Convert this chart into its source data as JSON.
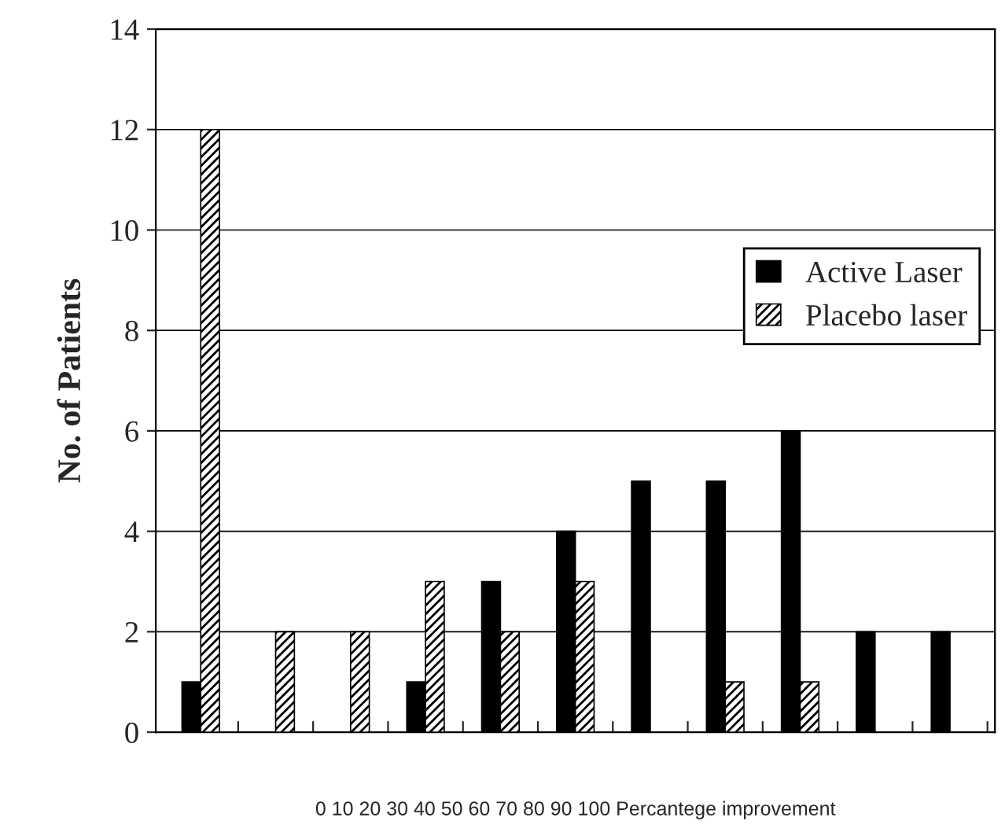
{
  "chart_data": {
    "type": "bar",
    "categories": [
      null,
      null,
      null,
      null,
      null,
      null,
      null,
      null,
      null,
      null,
      null
    ],
    "series": [
      {
        "name": "Active Laser",
        "color": "#000000",
        "values": [
          1,
          0,
          0,
          1,
          3,
          4,
          5,
          5,
          6,
          2,
          2
        ]
      },
      {
        "name": "Placebo laser",
        "color": "#000000",
        "values": [
          12,
          2,
          2,
          3,
          2,
          3,
          0,
          1,
          1,
          0,
          0
        ]
      }
    ],
    "xlabel": "0 10 20 30 40 50 60 70 80 90 100 Percantege improvement",
    "ylabel": "No. of Patients",
    "ylim": [
      0,
      14
    ],
    "yticks": [
      0,
      2,
      4,
      6,
      8,
      10,
      12,
      14
    ],
    "grid": "y",
    "legend": "right"
  }
}
